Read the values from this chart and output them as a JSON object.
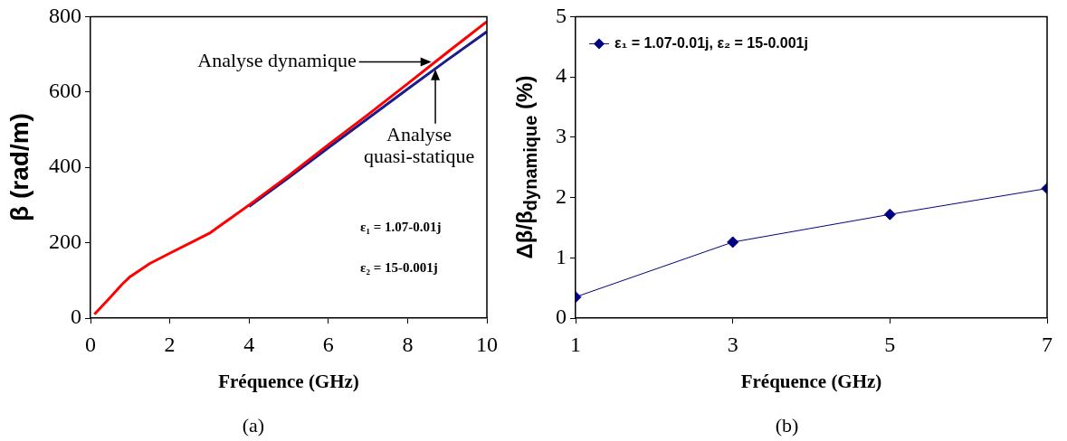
{
  "chart_data": [
    {
      "type": "line",
      "xlabel": "Fréquence (GHz)",
      "ylabel": "β (rad/m)",
      "xlim": [
        0,
        10
      ],
      "xticks": [
        0,
        2,
        4,
        6,
        8,
        10
      ],
      "ylim": [
        0,
        800
      ],
      "yticks": [
        0,
        200,
        400,
        600,
        800
      ],
      "grid": false,
      "legend": false,
      "marker": "none",
      "line_style": "solid",
      "series": [
        {
          "color": "#1c1c8c",
          "x": [
            4,
            5,
            6,
            7,
            8,
            9,
            10
          ],
          "values": [
            296,
            373,
            452,
            530,
            608,
            685,
            760
          ]
        },
        {
          "color": "#ff0000",
          "x": [
            0.1,
            0.5,
            0.8,
            1,
            1.5,
            2,
            3,
            4,
            5,
            6,
            7,
            8,
            9,
            10
          ],
          "values": [
            10,
            55,
            90,
            110,
            145,
            172,
            225,
            300,
            378,
            460,
            540,
            622,
            705,
            787
          ]
        }
      ],
      "annotations": [
        {
          "text": "Analyse dynamique",
          "x": 8.6,
          "y": 680
        },
        {
          "text": "Analyse quasi-statique",
          "x": 8.7,
          "y": 660
        },
        "ε₁ = 1.07-0.01j",
        "ε₂ = 15-0.001j",
        "(a)"
      ]
    },
    {
      "type": "line",
      "xlabel": "Fréquence (GHz)",
      "ylabel": "Δβ/β$_{dynamique}$ (%)",
      "x": [
        1,
        3,
        5,
        7
      ],
      "xlim": [
        1,
        7
      ],
      "xticks": [
        1,
        3,
        5,
        7
      ],
      "ylim": [
        0,
        5
      ],
      "yticks": [
        0,
        1,
        2,
        3,
        4,
        5
      ],
      "grid": false,
      "legend": "top left",
      "marker": "diamond",
      "line_style": "solid",
      "series": [
        {
          "name": "ε₁ = 1.07-0.01j, ε₂ = 15-0.001j",
          "color": "#000080",
          "values": [
            0.35,
            1.26,
            1.72,
            2.15
          ]
        }
      ],
      "annotations": [
        "(b)"
      ]
    }
  ]
}
